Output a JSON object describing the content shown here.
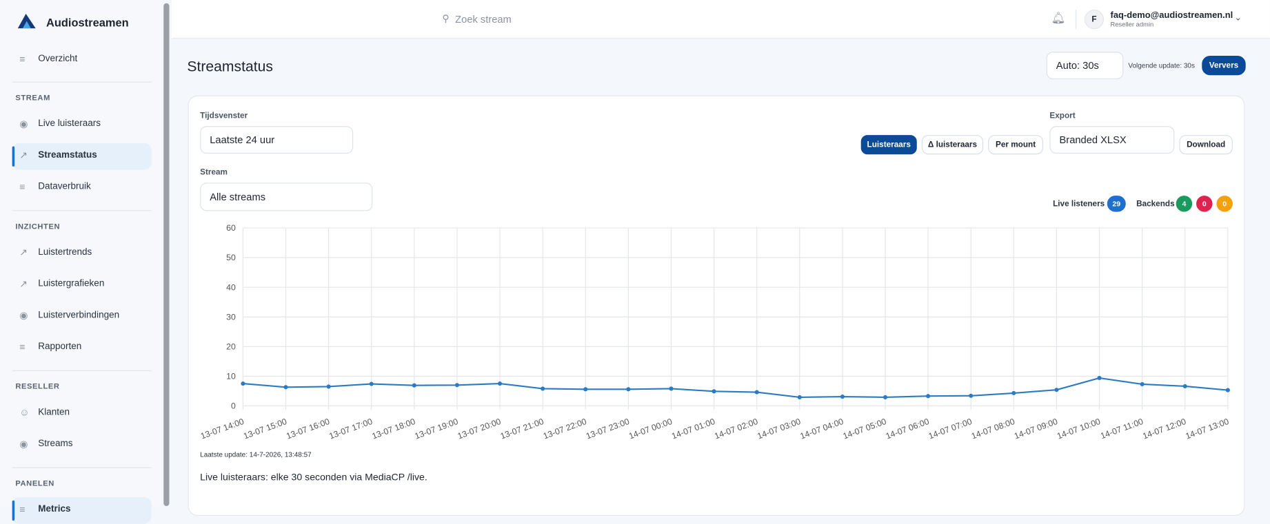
{
  "sidebar": {
    "brand": "Audiostreamen",
    "top_item": {
      "label": "Overzicht",
      "icon": "list"
    },
    "sections": [
      {
        "title": "STREAM",
        "items": [
          {
            "label": "Live luisteraars",
            "icon": "eye"
          },
          {
            "label": "Streamstatus",
            "icon": "chart",
            "active": true
          },
          {
            "label": "Dataverbruik",
            "icon": "list"
          }
        ]
      },
      {
        "title": "INZICHTEN",
        "items": [
          {
            "label": "Luistertrends",
            "icon": "chart"
          },
          {
            "label": "Luistergrafieken",
            "icon": "chart"
          },
          {
            "label": "Luisterverbindingen",
            "icon": "eye"
          },
          {
            "label": "Rapporten",
            "icon": "list"
          }
        ]
      },
      {
        "title": "RESELLER",
        "items": [
          {
            "label": "Klanten",
            "icon": "users"
          },
          {
            "label": "Streams",
            "icon": "eye"
          }
        ]
      },
      {
        "title": "PANELEN",
        "items": [
          {
            "label": "Metrics",
            "icon": "list",
            "active": true
          }
        ]
      }
    ]
  },
  "topbar": {
    "search_placeholder": "Zoek stream",
    "avatar": "F",
    "email": "faq-demo@audiostreamen.nl",
    "role": "Reseller admin"
  },
  "page": {
    "title": "Streamstatus",
    "auto_select": "Auto: 30s",
    "next_update": "Volgende update: 30s",
    "refresh_button": "Ververs"
  },
  "card": {
    "window_label": "Tijdsvenster",
    "window_value": "Laatste 24 uur",
    "stream_label": "Stream",
    "stream_value": "Alle streams",
    "view_buttons": [
      {
        "label": "Luisteraars",
        "active": true
      },
      {
        "label": "Δ luisteraars"
      },
      {
        "label": "Per mount"
      }
    ],
    "export_label": "Export",
    "export_value": "Branded XLSX",
    "download_button": "Download",
    "live_label": "Live listeners",
    "live_count": 29,
    "backends_label": "Backends",
    "backends": [
      {
        "count": 4,
        "color": "#1a9a5c"
      },
      {
        "count": 0,
        "color": "#e0234e"
      },
      {
        "count": 0,
        "color": "#f5a20a"
      }
    ],
    "last_update": "Laatste update: 14-7-2026, 13:48:57",
    "footnote": "Live luisteraars: elke 30 seconden via MediaCP /live."
  },
  "chart_data": {
    "type": "line",
    "color": "#2b7bc4",
    "grid": true,
    "categories": [
      "13-07 14:00",
      "13-07 15:00",
      "13-07 16:00",
      "13-07 17:00",
      "13-07 18:00",
      "13-07 19:00",
      "13-07 20:00",
      "13-07 21:00",
      "13-07 22:00",
      "13-07 23:00",
      "14-07 00:00",
      "14-07 01:00",
      "14-07 02:00",
      "14-07 03:00",
      "14-07 04:00",
      "14-07 05:00",
      "14-07 06:00",
      "14-07 07:00",
      "14-07 08:00",
      "14-07 09:00",
      "14-07 10:00",
      "14-07 11:00",
      "14-07 12:00",
      "14-07 13:00"
    ],
    "values": [
      7.5,
      6.3,
      6.5,
      7.4,
      6.9,
      7.0,
      7.5,
      5.8,
      5.6,
      5.6,
      5.8,
      4.9,
      4.6,
      2.9,
      3.1,
      2.9,
      3.3,
      3.4,
      4.3,
      5.4,
      9.4,
      7.3,
      6.6,
      5.3
    ],
    "ylim": [
      0,
      60
    ],
    "yticks": [
      0,
      10,
      20,
      30,
      40,
      50,
      60
    ]
  }
}
